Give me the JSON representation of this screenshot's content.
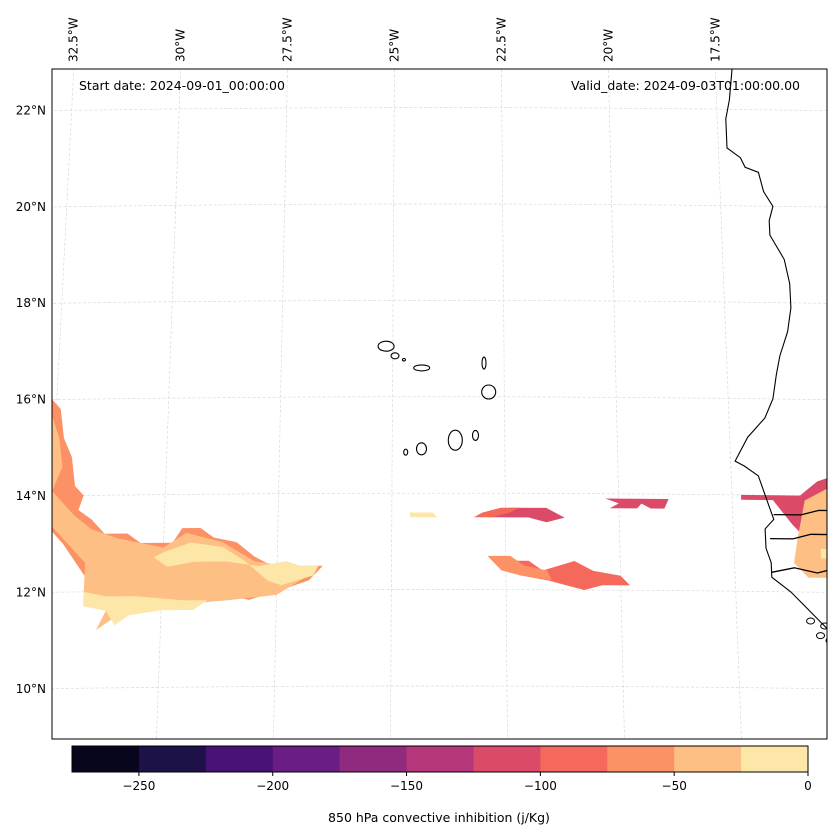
{
  "chart_data": {
    "type": "heatmap",
    "subtype": "filled-contour-map",
    "title": "",
    "annotations": {
      "start_date": "Start date: 2024-09-01_00:00:00",
      "valid_date": "Valid_date: 2024-09-03T01:00:00.00"
    },
    "map": {
      "region": "Eastern tropical Atlantic / Cape Verde / West African coast",
      "lon_range": [
        -32.6,
        -15.3
      ],
      "lat_range": [
        8.9,
        22.8
      ],
      "gridlines": true,
      "coastlines": true
    },
    "x_ticks": [
      {
        "value": -32.5,
        "label": "32.5°W"
      },
      {
        "value": -30,
        "label": "30°W"
      },
      {
        "value": -27.5,
        "label": "27.5°W"
      },
      {
        "value": -25,
        "label": "25°W"
      },
      {
        "value": -22.5,
        "label": "22.5°W"
      },
      {
        "value": -20,
        "label": "20°W"
      },
      {
        "value": -17.5,
        "label": "17.5°W"
      }
    ],
    "y_ticks": [
      {
        "value": 22,
        "label": "22°N"
      },
      {
        "value": 20,
        "label": "20°N"
      },
      {
        "value": 18,
        "label": "18°N"
      },
      {
        "value": 16,
        "label": "16°N"
      },
      {
        "value": 14,
        "label": "14°N"
      },
      {
        "value": 12,
        "label": "12°N"
      },
      {
        "value": 10,
        "label": "10°N"
      }
    ],
    "colorbar": {
      "label": "850 hPa convective inhibition (j/Kg)",
      "range": [
        -275,
        0
      ],
      "levels": [
        -275,
        -250,
        -225,
        -200,
        -175,
        -150,
        -125,
        -100,
        -75,
        -50,
        -25,
        0
      ],
      "colors": [
        "#07061c",
        "#1e1148",
        "#471175",
        "#6a1d82",
        "#8f2a7f",
        "#b5367a",
        "#dc4a6a",
        "#f4695c",
        "#fc9165",
        "#fdbf84",
        "#fde7a8"
      ],
      "tick_values": [
        -250,
        -200,
        -150,
        -100,
        -50,
        0
      ],
      "tick_labels": [
        "−250",
        "−200",
        "−150",
        "−100",
        "−50",
        "0"
      ],
      "orientation": "horizontal",
      "placement": "bottom"
    },
    "regions": [
      {
        "name": "western-band-outer",
        "level_range": [
          -75,
          -50
        ],
        "polygon": [
          [
            -32.6,
            16.0
          ],
          [
            -32.4,
            15.8
          ],
          [
            -32.3,
            15.2
          ],
          [
            -32.1,
            14.8
          ],
          [
            -32.0,
            14.2
          ],
          [
            -31.8,
            14.0
          ],
          [
            -31.9,
            13.7
          ],
          [
            -31.6,
            13.5
          ],
          [
            -31.3,
            13.2
          ],
          [
            -30.8,
            13.2
          ],
          [
            -30.5,
            13.0
          ],
          [
            -29.8,
            13.0
          ],
          [
            -29.6,
            13.3
          ],
          [
            -29.2,
            13.3
          ],
          [
            -28.9,
            13.1
          ],
          [
            -28.4,
            13.0
          ],
          [
            -28.0,
            12.7
          ],
          [
            -27.6,
            12.5
          ],
          [
            -26.5,
            12.5
          ],
          [
            -26.8,
            12.2
          ],
          [
            -27.4,
            12.0
          ],
          [
            -28.1,
            11.8
          ],
          [
            -29.0,
            12.0
          ],
          [
            -29.5,
            12.2
          ],
          [
            -30.0,
            12.6
          ],
          [
            -31.0,
            12.7
          ],
          [
            -31.4,
            12.5
          ],
          [
            -31.6,
            12.2
          ],
          [
            -32.2,
            13.0
          ],
          [
            -32.6,
            13.4
          ]
        ]
      },
      {
        "name": "western-band-mid",
        "level_range": [
          -50,
          -25
        ],
        "polygon": [
          [
            -32.6,
            15.7
          ],
          [
            -32.4,
            15.2
          ],
          [
            -32.3,
            14.6
          ],
          [
            -32.5,
            14.1
          ],
          [
            -32.0,
            13.6
          ],
          [
            -31.6,
            13.3
          ],
          [
            -31.0,
            13.1
          ],
          [
            -30.0,
            12.9
          ],
          [
            -29.5,
            13.2
          ],
          [
            -28.7,
            13.0
          ],
          [
            -28.0,
            12.6
          ],
          [
            -27.3,
            12.5
          ],
          [
            -26.8,
            12.3
          ],
          [
            -27.5,
            11.9
          ],
          [
            -28.5,
            11.8
          ],
          [
            -29.8,
            11.7
          ],
          [
            -30.8,
            11.6
          ],
          [
            -31.4,
            11.2
          ],
          [
            -31.2,
            11.6
          ],
          [
            -31.7,
            11.8
          ],
          [
            -31.7,
            12.6
          ],
          [
            -32.6,
            13.5
          ]
        ]
      },
      {
        "name": "western-band-core",
        "level_range": [
          -25,
          0
        ],
        "polygon": [
          [
            -30.0,
            12.8
          ],
          [
            -29.4,
            13.0
          ],
          [
            -28.7,
            12.9
          ],
          [
            -28.2,
            12.6
          ],
          [
            -27.7,
            12.2
          ],
          [
            -27.4,
            12.1
          ],
          [
            -26.7,
            12.3
          ],
          [
            -26.6,
            12.5
          ],
          [
            -27.0,
            12.5
          ],
          [
            -27.3,
            12.6
          ],
          [
            -27.9,
            12.5
          ],
          [
            -28.6,
            12.6
          ],
          [
            -29.3,
            12.6
          ],
          [
            -29.9,
            12.5
          ],
          [
            -30.2,
            12.7
          ]
        ]
      },
      {
        "name": "western-band-lower-core",
        "level_range": [
          -25,
          0
        ],
        "polygon": [
          [
            -31.7,
            12.0
          ],
          [
            -31.2,
            11.9
          ],
          [
            -30.6,
            11.9
          ],
          [
            -29.5,
            11.8
          ],
          [
            -29.0,
            11.8
          ],
          [
            -29.3,
            11.6
          ],
          [
            -30.0,
            11.6
          ],
          [
            -30.7,
            11.5
          ],
          [
            -31.0,
            11.3
          ],
          [
            -31.2,
            11.6
          ],
          [
            -31.7,
            11.7
          ]
        ]
      },
      {
        "name": "central-band-north",
        "level_range": [
          -125,
          -100
        ],
        "polygon": [
          [
            -22.4,
            13.7
          ],
          [
            -21.6,
            13.7
          ],
          [
            -21.2,
            13.5
          ],
          [
            -21.6,
            13.4
          ],
          [
            -22.0,
            13.5
          ],
          [
            -22.6,
            13.5
          ],
          [
            -22.9,
            13.5
          ],
          [
            -22.6,
            13.6
          ]
        ]
      },
      {
        "name": "central-band-north-outer",
        "level_range": [
          -100,
          -75
        ],
        "polygon": [
          [
            -23.0,
            13.6
          ],
          [
            -22.6,
            13.7
          ],
          [
            -22.2,
            13.7
          ],
          [
            -22.4,
            13.6
          ],
          [
            -22.8,
            13.5
          ],
          [
            -23.2,
            13.5
          ]
        ]
      },
      {
        "name": "central-band-north-west",
        "level_range": [
          -25,
          0
        ],
        "polygon": [
          [
            -24.6,
            13.6
          ],
          [
            -24.1,
            13.6
          ],
          [
            -24.0,
            13.5
          ],
          [
            -24.6,
            13.5
          ]
        ]
      },
      {
        "name": "central-band-south",
        "level_range": [
          -100,
          -75
        ],
        "polygon": [
          [
            -22.5,
            12.6
          ],
          [
            -22.0,
            12.6
          ],
          [
            -21.7,
            12.4
          ],
          [
            -21.0,
            12.6
          ],
          [
            -20.6,
            12.4
          ],
          [
            -20.0,
            12.3
          ],
          [
            -19.8,
            12.1
          ],
          [
            -20.4,
            12.1
          ],
          [
            -20.8,
            12.0
          ],
          [
            -21.6,
            12.2
          ],
          [
            -22.2,
            12.3
          ],
          [
            -22.4,
            12.4
          ]
        ]
      },
      {
        "name": "central-band-south-outer",
        "level_range": [
          -75,
          -50
        ],
        "polygon": [
          [
            -22.9,
            12.7
          ],
          [
            -22.4,
            12.7
          ],
          [
            -22.1,
            12.5
          ],
          [
            -21.6,
            12.4
          ],
          [
            -21.5,
            12.2
          ],
          [
            -22.2,
            12.3
          ],
          [
            -22.6,
            12.4
          ]
        ]
      },
      {
        "name": "eastern-band",
        "level_range": [
          -125,
          -100
        ],
        "polygon": [
          [
            -20.3,
            13.9
          ],
          [
            -18.9,
            13.9
          ],
          [
            -19.0,
            13.7
          ],
          [
            -19.3,
            13.7
          ],
          [
            -19.5,
            13.8
          ],
          [
            -19.6,
            13.7
          ],
          [
            -20.2,
            13.7
          ],
          [
            -20.0,
            13.8
          ]
        ]
      },
      {
        "name": "coast-outer",
        "level_range": [
          -125,
          -100
        ],
        "polygon": [
          [
            -17.3,
            14.0
          ],
          [
            -16.0,
            14.0
          ],
          [
            -15.6,
            14.3
          ],
          [
            -15.3,
            14.4
          ],
          [
            -15.3,
            12.7
          ],
          [
            -15.9,
            12.7
          ],
          [
            -16.0,
            13.2
          ],
          [
            -16.2,
            13.4
          ],
          [
            -16.6,
            13.9
          ],
          [
            -17.3,
            13.9
          ]
        ]
      },
      {
        "name": "coast-inner",
        "level_range": [
          -50,
          -25
        ],
        "polygon": [
          [
            -15.9,
            13.9
          ],
          [
            -15.5,
            14.1
          ],
          [
            -15.3,
            14.2
          ],
          [
            -15.3,
            12.3
          ],
          [
            -15.9,
            12.3
          ],
          [
            -16.2,
            12.6
          ],
          [
            -16.1,
            13.1
          ],
          [
            -16.0,
            13.5
          ]
        ]
      },
      {
        "name": "coast-core",
        "level_range": [
          -25,
          0
        ],
        "polygon": [
          [
            -15.6,
            12.9
          ],
          [
            -15.4,
            12.9
          ],
          [
            -15.4,
            12.7
          ],
          [
            -15.6,
            12.7
          ]
        ]
      }
    ],
    "islands": [
      {
        "name": "santo-antao"
      },
      {
        "name": "sao-vicente"
      },
      {
        "name": "santa-luzia"
      },
      {
        "name": "sao-nicolau"
      },
      {
        "name": "sal"
      },
      {
        "name": "boa-vista"
      },
      {
        "name": "maio"
      },
      {
        "name": "santiago"
      },
      {
        "name": "fogo"
      },
      {
        "name": "brava"
      }
    ]
  }
}
